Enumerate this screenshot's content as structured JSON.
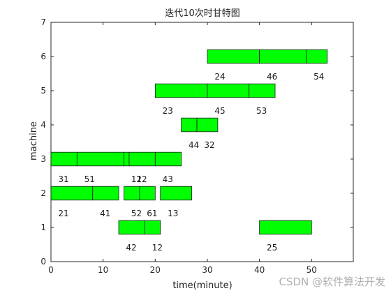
{
  "chart_data": {
    "type": "gantt",
    "title": "迭代10次时甘特图",
    "xlabel": "time(minute)",
    "ylabel": "machine",
    "xlim": [
      0,
      58
    ],
    "ylim": [
      0,
      7
    ],
    "xticks": [
      0,
      10,
      20,
      30,
      40,
      50
    ],
    "yticks": [
      0,
      1,
      2,
      3,
      4,
      5,
      6,
      7
    ],
    "grid": false,
    "bar_color": "#00ff00",
    "tasks": [
      {
        "machine": 1,
        "label": "42",
        "start": 13,
        "end": 18
      },
      {
        "machine": 1,
        "label": "12",
        "start": 18,
        "end": 21
      },
      {
        "machine": 1,
        "label": "25",
        "start": 40,
        "end": 50
      },
      {
        "machine": 2,
        "label": "21",
        "start": 0,
        "end": 8
      },
      {
        "machine": 2,
        "label": "41",
        "start": 8,
        "end": 13
      },
      {
        "machine": 2,
        "label": "52",
        "start": 14,
        "end": 17
      },
      {
        "machine": 2,
        "label": "61",
        "start": 17,
        "end": 20
      },
      {
        "machine": 2,
        "label": "13",
        "start": 21,
        "end": 27
      },
      {
        "machine": 3,
        "label": "31",
        "start": 0,
        "end": 5
      },
      {
        "machine": 3,
        "label": "51",
        "start": 5,
        "end": 14
      },
      {
        "machine": 3,
        "label": "11",
        "start": 14,
        "end": 15
      },
      {
        "machine": 3,
        "label": "22",
        "start": 15,
        "end": 20
      },
      {
        "machine": 3,
        "label": "43",
        "start": 20,
        "end": 25
      },
      {
        "machine": 4,
        "label": "44",
        "start": 25,
        "end": 28
      },
      {
        "machine": 4,
        "label": "32",
        "start": 28,
        "end": 32
      },
      {
        "machine": 5,
        "label": "23",
        "start": 20,
        "end": 30
      },
      {
        "machine": 5,
        "label": "45",
        "start": 30,
        "end": 38
      },
      {
        "machine": 5,
        "label": "53",
        "start": 38,
        "end": 43
      },
      {
        "machine": 6,
        "label": "24",
        "start": 30,
        "end": 40
      },
      {
        "machine": 6,
        "label": "46",
        "start": 40,
        "end": 49
      },
      {
        "machine": 6,
        "label": "54",
        "start": 49,
        "end": 53
      }
    ]
  },
  "watermark": "CSDN @软件算法开发"
}
